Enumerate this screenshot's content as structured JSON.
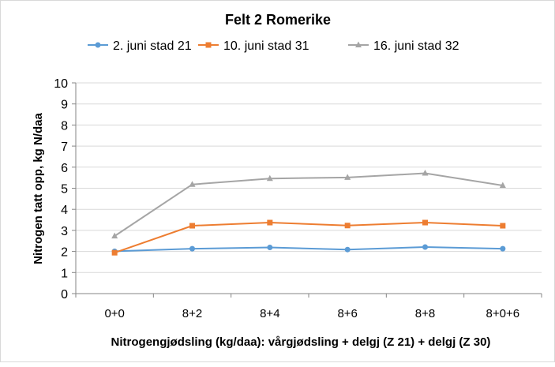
{
  "chart_data": {
    "type": "line",
    "title": "Felt 2 Romerike",
    "xlabel": "Nitrogengjødsling (kg/daa): vårgjødsling + delgj (Z 21) + delgj (Z 30)",
    "ylabel": "Nitrogen tatt opp, kg N/daa",
    "ylim": [
      0,
      10
    ],
    "yticks": [
      0,
      1,
      2,
      3,
      4,
      5,
      6,
      7,
      8,
      9,
      10
    ],
    "grid": true,
    "legend": "top",
    "categories": [
      "0+0",
      "8+2",
      "8+4",
      "8+6",
      "8+8",
      "8+0+6"
    ],
    "series": [
      {
        "name": "2. juni stad 21",
        "color": "#5b9bd5",
        "marker": "circle",
        "values": [
          2.01,
          2.13,
          2.19,
          2.09,
          2.21,
          2.13
        ]
      },
      {
        "name": "10. juni stad 31",
        "color": "#ed7d31",
        "marker": "square",
        "values": [
          1.94,
          3.22,
          3.37,
          3.23,
          3.37,
          3.22
        ]
      },
      {
        "name": "16. juni stad 32",
        "color": "#a5a5a5",
        "marker": "triangle",
        "values": [
          2.73,
          5.18,
          5.46,
          5.51,
          5.71,
          5.13
        ]
      }
    ]
  }
}
